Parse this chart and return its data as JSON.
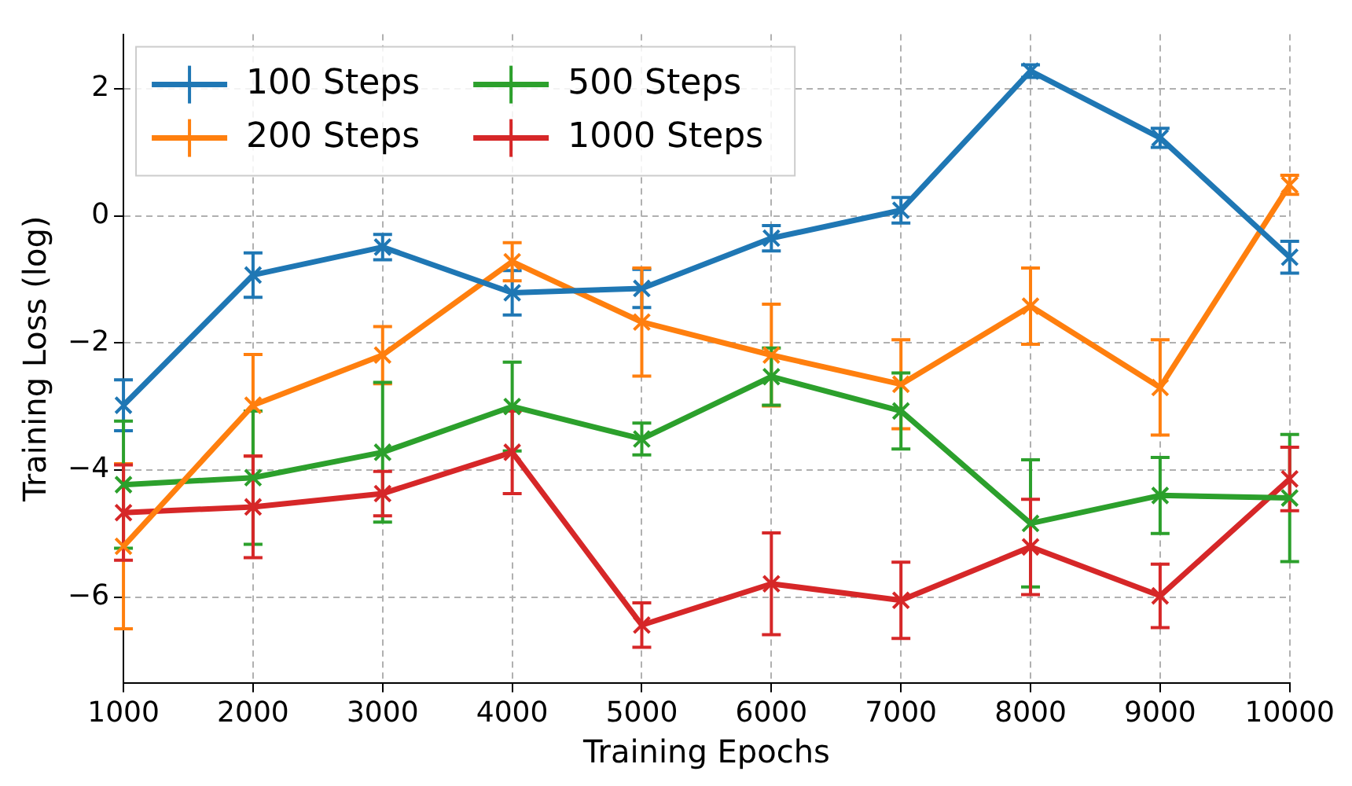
{
  "chart_data": {
    "type": "line",
    "xlabel": "Training Epochs",
    "ylabel": "Training Loss (log)",
    "x": [
      1000,
      2000,
      3000,
      4000,
      5000,
      6000,
      7000,
      8000,
      9000,
      10000
    ],
    "series": [
      {
        "name": "100 Steps",
        "color": "#1f77b4",
        "values": [
          -2.98,
          -0.93,
          -0.49,
          -1.21,
          -1.14,
          -0.35,
          0.09,
          2.28,
          1.23,
          -0.65
        ],
        "errors": [
          0.4,
          0.35,
          0.2,
          0.35,
          0.3,
          0.2,
          0.2,
          0.1,
          0.15,
          0.25
        ]
      },
      {
        "name": "200 Steps",
        "color": "#ff7f0e",
        "values": [
          -5.2,
          -2.98,
          -2.19,
          -0.72,
          -1.67,
          -2.19,
          -2.65,
          -1.42,
          -2.7,
          0.49
        ],
        "errors": [
          1.3,
          0.8,
          0.45,
          0.3,
          0.85,
          0.8,
          0.7,
          0.6,
          0.75,
          0.15
        ]
      },
      {
        "name": "500 Steps",
        "color": "#2ca02c",
        "values": [
          -4.23,
          -4.12,
          -3.72,
          -3.0,
          -3.51,
          -2.53,
          -3.07,
          -4.84,
          -4.4,
          -4.44
        ],
        "errors": [
          1.0,
          1.05,
          1.1,
          0.7,
          0.25,
          0.45,
          0.6,
          1.0,
          0.6,
          1.0
        ]
      },
      {
        "name": "1000 Steps",
        "color": "#d62728",
        "values": [
          -4.67,
          -4.58,
          -4.37,
          -3.72,
          -6.44,
          -5.79,
          -6.05,
          -5.21,
          -5.98,
          -4.14
        ],
        "errors": [
          0.75,
          0.8,
          0.35,
          0.65,
          0.35,
          0.8,
          0.6,
          0.75,
          0.5,
          0.5
        ]
      }
    ],
    "xlim": [
      1000,
      10000
    ],
    "xticks": [
      1000,
      2000,
      3000,
      4000,
      5000,
      6000,
      7000,
      8000,
      9000,
      10000
    ],
    "ylim": [
      -7.35,
      2.86
    ],
    "yticks": [
      {
        "value": -6,
        "label": "−6"
      },
      {
        "value": -4,
        "label": "−4"
      },
      {
        "value": -2,
        "label": "−2"
      },
      0,
      2
    ],
    "grid": true,
    "legend": "top left",
    "marker": "cross",
    "line_style": "solid"
  }
}
